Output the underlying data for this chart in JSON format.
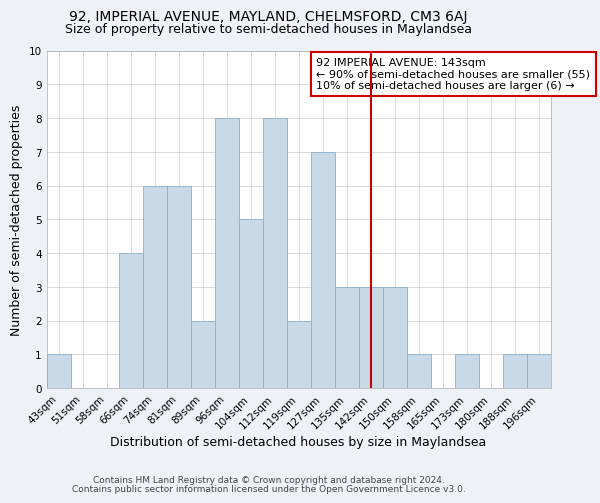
{
  "title": "92, IMPERIAL AVENUE, MAYLAND, CHELMSFORD, CM3 6AJ",
  "subtitle": "Size of property relative to semi-detached houses in Maylandsea",
  "xlabel": "Distribution of semi-detached houses by size in Maylandsea",
  "ylabel": "Number of semi-detached properties",
  "footer_line1": "Contains HM Land Registry data © Crown copyright and database right 2024.",
  "footer_line2": "Contains public sector information licensed under the Open Government Licence v3.0.",
  "bin_labels": [
    "43sqm",
    "51sqm",
    "58sqm",
    "66sqm",
    "74sqm",
    "81sqm",
    "89sqm",
    "96sqm",
    "104sqm",
    "112sqm",
    "119sqm",
    "127sqm",
    "135sqm",
    "142sqm",
    "150sqm",
    "158sqm",
    "165sqm",
    "173sqm",
    "180sqm",
    "188sqm",
    "196sqm"
  ],
  "bar_heights": [
    1,
    0,
    0,
    4,
    6,
    6,
    2,
    8,
    5,
    8,
    2,
    7,
    3,
    3,
    3,
    1,
    0,
    1,
    0,
    1,
    1
  ],
  "bar_color": "#c8d9e8",
  "bar_edge_color": "#8ab0c8",
  "marker_bin_index": 13,
  "legend_line1": "92 IMPERIAL AVENUE: 143sqm",
  "legend_line2": "← 90% of semi-detached houses are smaller (55)",
  "legend_line3": "10% of semi-detached houses are larger (6) →",
  "vline_color": "#cc0000",
  "legend_box_edge_color": "#cc0000",
  "ylim": [
    0,
    10
  ],
  "yticks": [
    0,
    1,
    2,
    3,
    4,
    5,
    6,
    7,
    8,
    9,
    10
  ],
  "background_color": "#eef2f7",
  "plot_bg_color": "#ffffff",
  "grid_color": "#cccccc",
  "title_fontsize": 10,
  "subtitle_fontsize": 9,
  "axis_label_fontsize": 9,
  "tick_fontsize": 7.5,
  "footer_fontsize": 6.5,
  "legend_fontsize": 8
}
